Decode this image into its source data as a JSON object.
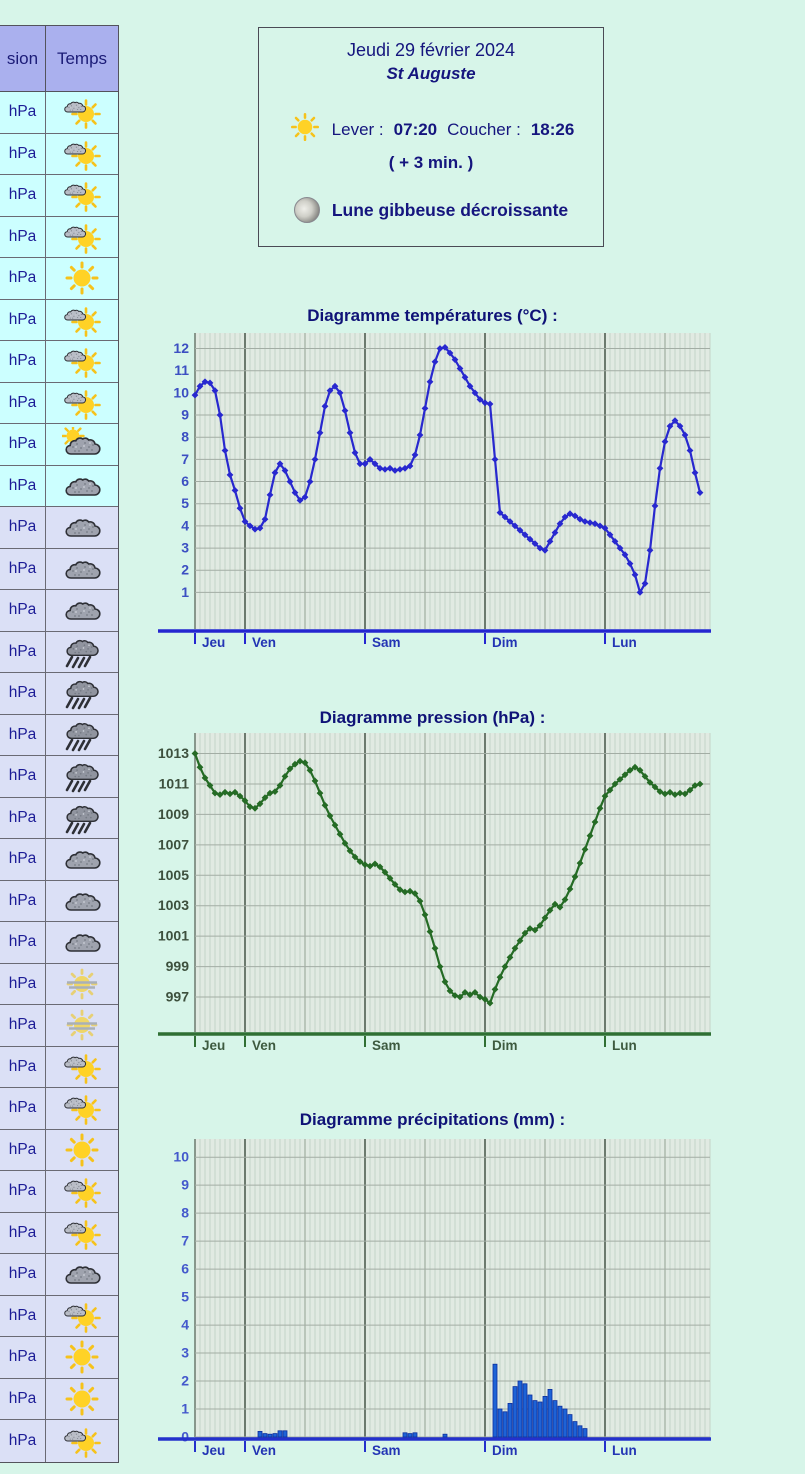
{
  "sidebar_table": {
    "headers": [
      "sion",
      "Temps"
    ],
    "unit_label": "hPa",
    "cyan_rows": 10,
    "colors": {
      "header_bg": "#aab0ee",
      "row_bg_cyan": "#ccffff",
      "row_bg_lavender": "#dbe0f6",
      "text": "#1c1c96"
    },
    "rows": [
      {
        "icon": "cloud-sun"
      },
      {
        "icon": "cloud-sun"
      },
      {
        "icon": "cloud-sun"
      },
      {
        "icon": "cloud-sun"
      },
      {
        "icon": "sun"
      },
      {
        "icon": "cloud-sun"
      },
      {
        "icon": "cloud-sun"
      },
      {
        "icon": "cloud-sun"
      },
      {
        "icon": "sun-behind-cloud"
      },
      {
        "icon": "cloud"
      },
      {
        "icon": "cloud"
      },
      {
        "icon": "cloud"
      },
      {
        "icon": "cloud"
      },
      {
        "icon": "rain"
      },
      {
        "icon": "rain"
      },
      {
        "icon": "rain"
      },
      {
        "icon": "rain"
      },
      {
        "icon": "rain"
      },
      {
        "icon": "cloud"
      },
      {
        "icon": "cloud"
      },
      {
        "icon": "cloud"
      },
      {
        "icon": "hazy-sun"
      },
      {
        "icon": "hazy-sun"
      },
      {
        "icon": "cloud-sun"
      },
      {
        "icon": "cloud-sun"
      },
      {
        "icon": "sun"
      },
      {
        "icon": "cloud-sun"
      },
      {
        "icon": "cloud-sun"
      },
      {
        "icon": "cloud"
      },
      {
        "icon": "cloud-sun"
      },
      {
        "icon": "sun"
      },
      {
        "icon": "sun"
      },
      {
        "icon": "cloud-sun"
      }
    ]
  },
  "info_box": {
    "date": "Jeudi 29 février 2024",
    "saint": "St Auguste",
    "sun_icon": "sun-icon",
    "sunrise_label": "Lever :",
    "sunrise": "07:20",
    "sunset_label": "Coucher :",
    "sunset": "18:26",
    "delta": "( + 3 min. )",
    "moon_icon": "moon-icon",
    "moon": "Lune gibbeuse décroissante"
  },
  "chart_data": [
    {
      "type": "line",
      "title": "Diagramme températures (°C) :",
      "color": "#2828cf",
      "axis_color": "#2526d0",
      "label_color": "#3c4fc2",
      "day_label_color": "#2334b4",
      "ylim": [
        -0.65,
        12.7
      ],
      "yticks": [
        1,
        2,
        3,
        4,
        5,
        6,
        7,
        8,
        9,
        10,
        11,
        12
      ],
      "day_labels": [
        "Jeu",
        "Ven",
        "Sam",
        "Dim",
        "Lun"
      ],
      "day_indices": [
        0,
        10,
        34,
        58,
        82
      ],
      "values": [
        9.9,
        10.3,
        10.5,
        10.45,
        10.1,
        9.0,
        7.4,
        6.3,
        5.6,
        4.8,
        4.2,
        4.0,
        3.85,
        3.9,
        4.3,
        5.4,
        6.4,
        6.8,
        6.5,
        6.0,
        5.5,
        5.15,
        5.3,
        6.0,
        7.0,
        8.2,
        9.4,
        10.1,
        10.3,
        10.0,
        9.2,
        8.2,
        7.3,
        6.8,
        6.8,
        7.0,
        6.8,
        6.6,
        6.55,
        6.6,
        6.5,
        6.55,
        6.6,
        6.7,
        7.2,
        8.1,
        9.3,
        10.5,
        11.4,
        12.0,
        12.05,
        11.8,
        11.5,
        11.1,
        10.7,
        10.3,
        10.0,
        9.7,
        9.55,
        9.5,
        7.0,
        4.6,
        4.4,
        4.2,
        4.0,
        3.8,
        3.6,
        3.4,
        3.2,
        3.0,
        2.9,
        3.3,
        3.7,
        4.1,
        4.4,
        4.55,
        4.45,
        4.3,
        4.2,
        4.15,
        4.1,
        4.0,
        3.9,
        3.6,
        3.3,
        3.0,
        2.7,
        2.3,
        1.8,
        1.0,
        1.4,
        2.9,
        4.9,
        6.6,
        7.8,
        8.5,
        8.75,
        8.5,
        8.1,
        7.4,
        6.4,
        5.5
      ]
    },
    {
      "type": "line",
      "title": "Diagramme pression (hPa) :",
      "color": "#256b25",
      "axis_color": "#2f6f33",
      "label_color": "#3d503d",
      "day_label_color": "#3d5a3f",
      "ylim": [
        994.7,
        1014.35
      ],
      "yticks": [
        997,
        999,
        1001,
        1003,
        1005,
        1007,
        1009,
        1011,
        1013
      ],
      "day_labels": [
        "Jeu",
        "Ven",
        "Sam",
        "Dim",
        "Lun"
      ],
      "day_indices": [
        0,
        10,
        34,
        58,
        82
      ],
      "values": [
        1013.0,
        1012.1,
        1011.4,
        1010.9,
        1010.4,
        1010.3,
        1010.45,
        1010.35,
        1010.45,
        1010.2,
        1009.9,
        1009.5,
        1009.4,
        1009.7,
        1010.1,
        1010.4,
        1010.5,
        1010.9,
        1011.5,
        1012.0,
        1012.3,
        1012.5,
        1012.4,
        1011.9,
        1011.2,
        1010.4,
        1009.6,
        1008.9,
        1008.3,
        1007.7,
        1007.1,
        1006.6,
        1006.2,
        1005.9,
        1005.7,
        1005.6,
        1005.75,
        1005.55,
        1005.2,
        1004.8,
        1004.4,
        1004.05,
        1003.9,
        1003.95,
        1003.8,
        1003.3,
        1002.4,
        1001.3,
        1000.2,
        999.0,
        998.0,
        997.4,
        997.1,
        997.0,
        997.3,
        997.15,
        997.3,
        997.0,
        996.85,
        996.6,
        997.5,
        998.3,
        999.0,
        999.6,
        1000.2,
        1000.7,
        1001.2,
        1001.5,
        1001.4,
        1001.7,
        1002.2,
        1002.7,
        1003.1,
        1002.9,
        1003.4,
        1004.1,
        1004.9,
        1005.8,
        1006.7,
        1007.6,
        1008.5,
        1009.4,
        1010.2,
        1010.6,
        1011.0,
        1011.3,
        1011.6,
        1011.9,
        1012.1,
        1011.9,
        1011.5,
        1011.1,
        1010.8,
        1010.5,
        1010.35,
        1010.45,
        1010.3,
        1010.4,
        1010.35,
        1010.6,
        1010.9,
        1011.0
      ]
    },
    {
      "type": "bar",
      "title": "Diagramme précipitations (mm) :",
      "color": "#1e63d6",
      "bar_stroke": "#0c2f9e",
      "axis_color": "#2431cc",
      "label_color": "#4459cc",
      "day_label_color": "#2334b4",
      "ylim": [
        0,
        10.65
      ],
      "yticks": [
        0,
        1,
        2,
        3,
        4,
        5,
        6,
        7,
        8,
        9,
        10
      ],
      "day_labels": [
        "Jeu",
        "Ven",
        "Sam",
        "Dim",
        "Lun"
      ],
      "day_indices": [
        0,
        10,
        34,
        58,
        82
      ],
      "values": [
        0,
        0,
        0,
        0,
        0,
        0,
        0,
        0,
        0,
        0,
        0,
        0,
        0,
        0.2,
        0.12,
        0.1,
        0.12,
        0.22,
        0.22,
        0,
        0,
        0,
        0,
        0,
        0,
        0,
        0,
        0,
        0,
        0,
        0,
        0,
        0,
        0,
        0,
        0,
        0,
        0,
        0,
        0,
        0,
        0,
        0.15,
        0.12,
        0.15,
        0,
        0,
        0,
        0,
        0,
        0.1,
        0,
        0,
        0,
        0,
        0,
        0,
        0,
        0,
        0,
        2.6,
        1.0,
        0.9,
        1.2,
        1.8,
        2.0,
        1.9,
        1.5,
        1.3,
        1.25,
        1.45,
        1.7,
        1.3,
        1.1,
        1.0,
        0.8,
        0.55,
        0.4,
        0.3,
        0,
        0,
        0,
        0,
        0,
        0,
        0,
        0,
        0,
        0,
        0,
        0,
        0,
        0,
        0,
        0,
        0,
        0,
        0,
        0,
        0,
        0,
        0
      ]
    }
  ]
}
